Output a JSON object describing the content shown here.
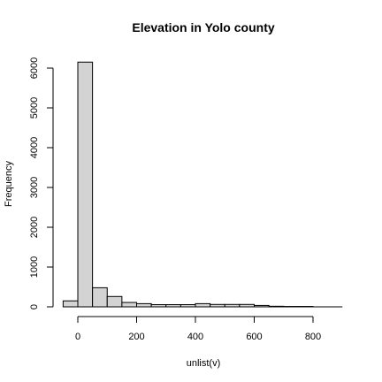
{
  "chart_data": {
    "type": "bar",
    "title": "Elevation in Yolo county",
    "xlabel": "unlist(v)",
    "ylabel": "Frequency",
    "xlim": [
      -50,
      900
    ],
    "ylim": [
      0,
      6500
    ],
    "x_ticks": [
      0,
      200,
      400,
      600,
      800
    ],
    "y_ticks": [
      0,
      1000,
      2000,
      3000,
      4000,
      5000,
      6000
    ],
    "bin_width": 50,
    "bins": [
      {
        "start": -50,
        "end": 0,
        "count": 150
      },
      {
        "start": 0,
        "end": 50,
        "count": 6150
      },
      {
        "start": 50,
        "end": 100,
        "count": 480
      },
      {
        "start": 100,
        "end": 150,
        "count": 260
      },
      {
        "start": 150,
        "end": 200,
        "count": 110
      },
      {
        "start": 200,
        "end": 250,
        "count": 80
      },
      {
        "start": 250,
        "end": 300,
        "count": 55
      },
      {
        "start": 300,
        "end": 350,
        "count": 55
      },
      {
        "start": 350,
        "end": 400,
        "count": 55
      },
      {
        "start": 400,
        "end": 450,
        "count": 80
      },
      {
        "start": 450,
        "end": 500,
        "count": 60
      },
      {
        "start": 500,
        "end": 550,
        "count": 60
      },
      {
        "start": 550,
        "end": 600,
        "count": 60
      },
      {
        "start": 600,
        "end": 650,
        "count": 35
      },
      {
        "start": 650,
        "end": 700,
        "count": 15
      },
      {
        "start": 700,
        "end": 750,
        "count": 10
      },
      {
        "start": 750,
        "end": 800,
        "count": 10
      }
    ],
    "grid": false,
    "bar_fill": "#d3d3d3",
    "bar_stroke": "#000000"
  }
}
